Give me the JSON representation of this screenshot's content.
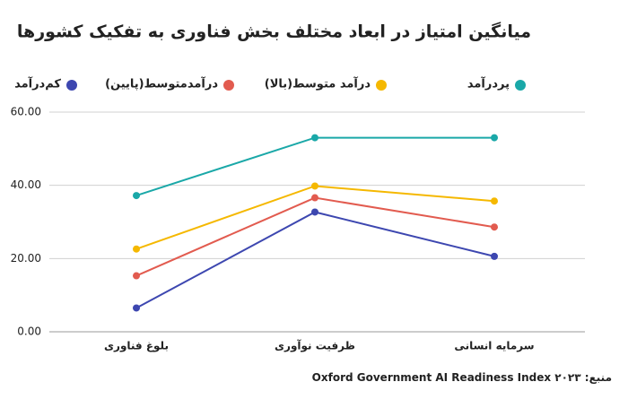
{
  "chart_data": {
    "type": "line",
    "title": "میانگین امتیاز در ابعاد مختلف بخش فناوری به تفکیک کشورها",
    "source": "منبع: Oxford Government AI Readiness Index ۲۰۲۳",
    "categories": [
      "بلوغ فناوری",
      "ظرفیت نوآوری",
      "سرمایه انسانی"
    ],
    "series": [
      {
        "name": "پردرآمد",
        "color": "#1aa8a8",
        "values": [
          37.2,
          53.0,
          53.0
        ]
      },
      {
        "name": "درآمد متوسط(بالا)",
        "color": "#f5b800",
        "values": [
          22.6,
          39.8,
          35.7
        ]
      },
      {
        "name": "درآمدمتوسط(پایین)",
        "color": "#e25b4f",
        "values": [
          15.3,
          36.6,
          28.6
        ]
      },
      {
        "name": "کم‌درآمد",
        "color": "#3d47b0",
        "values": [
          6.5,
          32.7,
          20.6
        ]
      }
    ],
    "ylim": [
      0,
      60
    ],
    "yticks": [
      {
        "value": 0,
        "label": "0.00"
      },
      {
        "value": 20,
        "label": "20.00"
      },
      {
        "value": 40,
        "label": "40.00"
      },
      {
        "value": 60,
        "label": "60.00"
      }
    ],
    "grid": true
  }
}
